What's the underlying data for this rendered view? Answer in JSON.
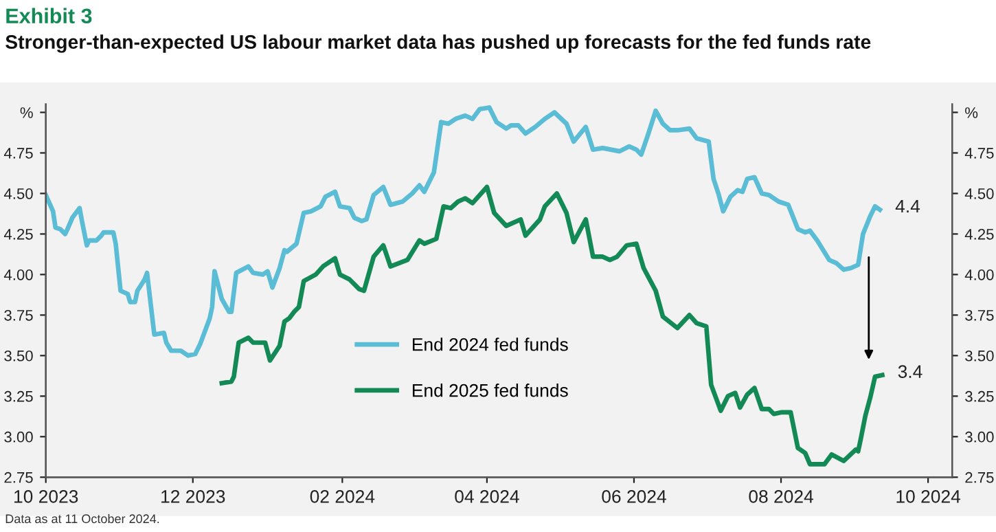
{
  "chart_data": {
    "type": "line",
    "title": "Exhibit 3",
    "subtitle": "Stronger-than-expected US labour market data has pushed up forecasts for the fed funds rate",
    "xlim": [
      "2023-10-01",
      "2024-10-11"
    ],
    "xticks": [
      {
        "value": "2023-10-01",
        "label": "10 2023"
      },
      {
        "value": "2023-12-01",
        "label": "12 2023"
      },
      {
        "value": "2024-02-01",
        "label": "02 2024"
      },
      {
        "value": "2024-04-01",
        "label": "04 2024"
      },
      {
        "value": "2024-06-01",
        "label": "06 2024"
      },
      {
        "value": "2024-08-01",
        "label": "08 2024"
      },
      {
        "value": "2024-10-01",
        "label": "10 2024"
      }
    ],
    "ylim": [
      2.75,
      5.05
    ],
    "yticks": [
      {
        "value": 2.75,
        "label": "2.75"
      },
      {
        "value": 3.0,
        "label": "3.00"
      },
      {
        "value": 3.25,
        "label": "3.25"
      },
      {
        "value": 3.5,
        "label": "3.50"
      },
      {
        "value": 3.75,
        "label": "3.75"
      },
      {
        "value": 4.0,
        "label": "4.00"
      },
      {
        "value": 4.25,
        "label": "4.25"
      },
      {
        "value": 4.5,
        "label": "4.50"
      },
      {
        "value": 4.75,
        "label": "4.75"
      },
      {
        "value": 5.0,
        "label": "%"
      }
    ],
    "y2lim": [
      2.75,
      5.05
    ],
    "y2ticks": [
      {
        "value": 2.75,
        "label": "2.75"
      },
      {
        "value": 3.0,
        "label": "3.00"
      },
      {
        "value": 3.25,
        "label": "3.25"
      },
      {
        "value": 3.5,
        "label": "3.50"
      },
      {
        "value": 3.75,
        "label": "3.75"
      },
      {
        "value": 4.0,
        "label": "4.00"
      },
      {
        "value": 4.25,
        "label": "4.25"
      },
      {
        "value": 4.5,
        "label": "4.50"
      },
      {
        "value": 4.75,
        "label": "4.75"
      },
      {
        "value": 5.0,
        "label": "%"
      }
    ],
    "grid": false,
    "legend": "center",
    "marker": "none",
    "line_style": "solid",
    "series": [
      {
        "name": "End 2024 fed funds",
        "color": "#5bbcd6",
        "x": [
          "2023-10-01",
          "2023-10-04",
          "2023-10-05",
          "2023-10-07",
          "2023-10-09",
          "2023-10-10",
          "2023-10-12",
          "2023-10-15",
          "2023-10-16",
          "2023-10-18",
          "2023-10-19",
          "2023-10-22",
          "2023-10-24",
          "2023-10-25",
          "2023-10-29",
          "2023-10-30",
          "2023-11-01",
          "2023-11-04",
          "2023-11-05",
          "2023-11-07",
          "2023-11-08",
          "2023-11-11",
          "2023-11-12",
          "2023-11-15",
          "2023-11-19",
          "2023-11-20",
          "2023-11-22",
          "2023-11-26",
          "2023-11-29",
          "2023-12-02",
          "2023-12-04",
          "2023-12-08",
          "2023-12-09",
          "2023-12-10",
          "2023-12-13",
          "2023-12-16",
          "2023-12-17",
          "2023-12-19",
          "2023-12-24",
          "2023-12-26",
          "2023-12-30",
          "2024-01-01",
          "2024-01-03",
          "2024-01-06",
          "2024-01-08",
          "2024-01-09",
          "2024-01-13",
          "2024-01-16",
          "2024-01-19",
          "2024-01-23",
          "2024-01-25",
          "2024-01-29",
          "2024-01-31",
          "2024-02-04",
          "2024-02-06",
          "2024-02-09",
          "2024-02-11",
          "2024-02-14",
          "2024-02-18",
          "2024-02-21",
          "2024-02-26",
          "2024-03-01",
          "2024-03-04",
          "2024-03-06",
          "2024-03-10",
          "2024-03-13",
          "2024-03-16",
          "2024-03-19",
          "2024-03-23",
          "2024-03-26",
          "2024-03-29",
          "2024-04-02",
          "2024-04-05",
          "2024-04-09",
          "2024-04-11",
          "2024-04-14",
          "2024-04-17",
          "2024-04-21",
          "2024-04-25",
          "2024-04-29",
          "2024-05-04",
          "2024-05-07",
          "2024-05-12",
          "2024-05-15",
          "2024-05-19",
          "2024-05-26",
          "2024-05-30",
          "2024-06-02",
          "2024-06-04",
          "2024-06-07",
          "2024-06-10",
          "2024-06-13",
          "2024-06-16",
          "2024-06-19",
          "2024-06-24",
          "2024-06-27",
          "2024-07-02",
          "2024-07-04",
          "2024-07-06",
          "2024-07-08",
          "2024-07-11",
          "2024-07-14",
          "2024-07-16",
          "2024-07-18",
          "2024-07-21",
          "2024-07-24",
          "2024-07-27",
          "2024-07-31",
          "2024-08-04",
          "2024-08-08",
          "2024-08-11",
          "2024-08-13",
          "2024-08-16",
          "2024-08-21",
          "2024-08-24",
          "2024-08-27",
          "2024-08-30",
          "2024-09-02",
          "2024-09-04",
          "2024-09-07",
          "2024-09-09",
          "2024-09-11"
        ],
        "values": [
          4.49,
          4.39,
          4.29,
          4.28,
          4.25,
          4.28,
          4.35,
          4.41,
          4.33,
          4.18,
          4.21,
          4.21,
          4.24,
          4.26,
          4.26,
          4.19,
          3.9,
          3.88,
          3.83,
          3.83,
          3.9,
          3.97,
          4.01,
          3.63,
          3.64,
          3.58,
          3.53,
          3.53,
          3.5,
          3.51,
          3.57,
          3.73,
          3.8,
          4.02,
          3.85,
          3.77,
          3.77,
          4.01,
          4.05,
          4.01,
          4.0,
          4.02,
          3.92,
          4.04,
          4.15,
          4.14,
          4.19,
          4.38,
          4.39,
          4.42,
          4.48,
          4.51,
          4.42,
          4.41,
          4.35,
          4.33,
          4.34,
          4.49,
          4.54,
          4.43,
          4.45,
          4.5,
          4.55,
          4.51,
          4.63,
          4.94,
          4.93,
          4.96,
          4.98,
          4.96,
          5.02,
          5.03,
          4.94,
          4.9,
          4.92,
          4.92,
          4.87,
          4.91,
          4.96,
          5.0,
          4.93,
          4.82,
          4.91,
          4.77,
          4.78,
          4.76,
          4.79,
          4.77,
          4.74,
          4.87,
          5.01,
          4.93,
          4.89,
          4.89,
          4.9,
          4.84,
          4.82,
          4.59,
          4.5,
          4.39,
          4.48,
          4.52,
          4.51,
          4.59,
          4.6,
          4.5,
          4.49,
          4.45,
          4.43,
          4.28,
          4.26,
          4.27,
          4.21,
          4.09,
          4.07,
          4.03,
          4.04,
          4.06,
          4.25,
          4.36,
          4.42,
          4.4
        ]
      },
      {
        "name": "End 2025 fed funds",
        "color": "#138a55",
        "x": [
          "2023-12-13",
          "2023-12-17",
          "2023-12-18",
          "2023-12-20",
          "2023-12-24",
          "2023-12-26",
          "2023-12-29",
          "2023-12-31",
          "2024-01-02",
          "2024-01-06",
          "2024-01-08",
          "2024-01-10",
          "2024-01-12",
          "2024-01-14",
          "2024-01-16",
          "2024-01-21",
          "2024-01-24",
          "2024-01-29",
          "2024-01-31",
          "2024-02-04",
          "2024-02-08",
          "2024-02-10",
          "2024-02-14",
          "2024-02-18",
          "2024-02-21",
          "2024-02-28",
          "2024-03-04",
          "2024-03-06",
          "2024-03-11",
          "2024-03-14",
          "2024-03-17",
          "2024-03-20",
          "2024-03-23",
          "2024-03-26",
          "2024-04-01",
          "2024-04-04",
          "2024-04-09",
          "2024-04-15",
          "2024-04-17",
          "2024-04-23",
          "2024-04-25",
          "2024-04-30",
          "2024-05-04",
          "2024-05-07",
          "2024-05-12",
          "2024-05-15",
          "2024-05-19",
          "2024-05-22",
          "2024-05-25",
          "2024-05-29",
          "2024-06-02",
          "2024-06-05",
          "2024-06-10",
          "2024-06-13",
          "2024-06-19",
          "2024-06-24",
          "2024-06-27",
          "2024-07-01",
          "2024-07-03",
          "2024-07-07",
          "2024-07-10",
          "2024-07-13",
          "2024-07-15",
          "2024-07-18",
          "2024-07-21",
          "2024-07-24",
          "2024-07-27",
          "2024-07-29",
          "2024-08-01",
          "2024-08-05",
          "2024-08-08",
          "2024-08-11",
          "2024-08-13",
          "2024-08-16",
          "2024-08-19",
          "2024-08-22",
          "2024-08-27",
          "2024-09-01",
          "2024-09-02",
          "2024-09-03",
          "2024-09-05",
          "2024-09-07",
          "2024-09-09",
          "2024-09-12"
        ],
        "values": [
          3.33,
          3.34,
          3.37,
          3.58,
          3.61,
          3.58,
          3.58,
          3.58,
          3.47,
          3.56,
          3.71,
          3.73,
          3.77,
          3.8,
          3.96,
          4.0,
          4.05,
          4.1,
          4.0,
          3.97,
          3.91,
          3.9,
          4.11,
          4.18,
          4.05,
          4.09,
          4.21,
          4.19,
          4.22,
          4.42,
          4.41,
          4.45,
          4.47,
          4.44,
          4.54,
          4.38,
          4.3,
          4.34,
          4.24,
          4.34,
          4.42,
          4.5,
          4.38,
          4.2,
          4.34,
          4.11,
          4.11,
          4.09,
          4.11,
          4.18,
          4.19,
          4.04,
          3.9,
          3.74,
          3.67,
          3.75,
          3.7,
          3.68,
          3.32,
          3.16,
          3.25,
          3.27,
          3.18,
          3.26,
          3.3,
          3.17,
          3.17,
          3.14,
          3.15,
          3.15,
          2.93,
          2.9,
          2.83,
          2.83,
          2.83,
          2.89,
          2.85,
          2.92,
          2.91,
          2.98,
          3.13,
          3.24,
          3.37,
          3.38
        ]
      }
    ],
    "annotations": [
      {
        "text": "4.4",
        "x": "2024-09-11",
        "y": 4.4
      },
      {
        "text": "3.4",
        "x": "2024-09-12",
        "y": 3.38
      },
      "Data as at 11 October 2024."
    ]
  }
}
